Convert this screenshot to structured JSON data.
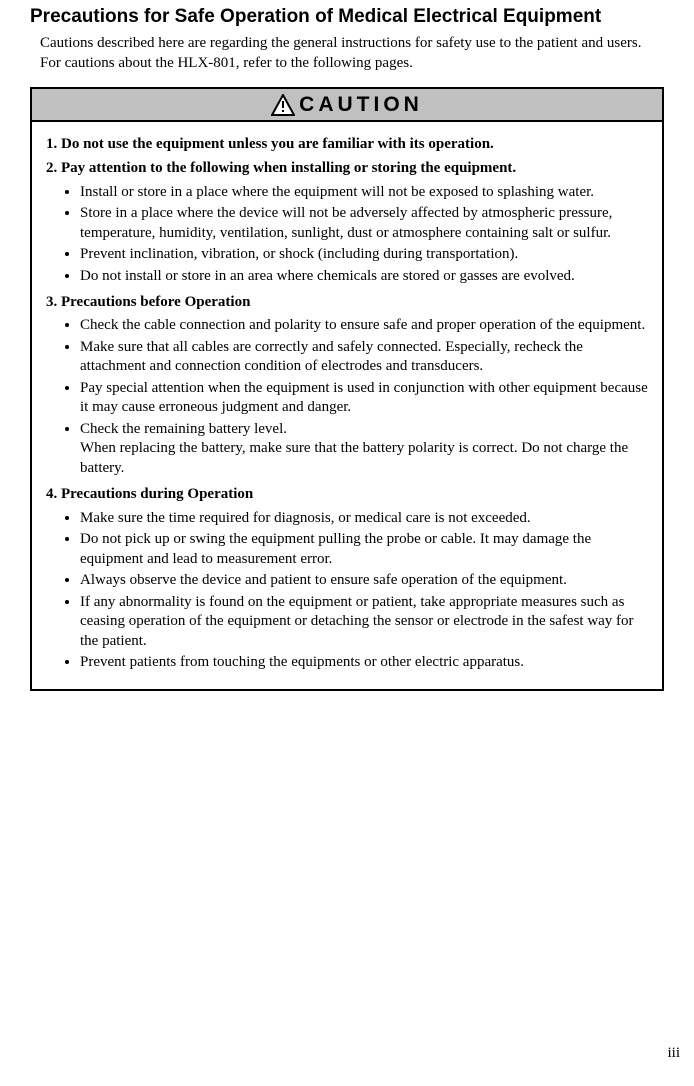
{
  "title": "Precautions for Safe Operation of Medical Electrical Equipment",
  "intro": "Cautions described here are regarding the general instructions for safety use to the patient and users. For cautions about the HLX-801, refer to the following pages.",
  "caution_label": "CAUTION",
  "caution_header_bg": "#c0c0c0",
  "border_color": "#000000",
  "text_color": "#000000",
  "page_number": "iii",
  "sections": [
    {
      "heading": "1. Do not use the equipment unless you are familiar with its operation.",
      "items": []
    },
    {
      "heading": "2. Pay attention to the following when installing or storing the equipment.",
      "items": [
        "Install or store in a place where the equipment will not be exposed to splashing water.",
        "Store in a place where the device will not be adversely affected by atmospheric pressure, temperature, humidity, ventilation, sunlight, dust or atmosphere containing salt or sulfur.",
        "Prevent inclination, vibration, or shock (including during transportation).",
        "Do not install or store in an area where chemicals are stored or gasses are evolved."
      ]
    },
    {
      "heading": "3. Precautions before Operation",
      "items": [
        "Check the cable connection and polarity to ensure safe and proper operation of the equipment.",
        "Make sure that all cables are correctly and safely connected. Especially, recheck the attachment and connection condition of electrodes and transducers.",
        "Pay special attention when the equipment is used in conjunction with other equipment because it may cause erroneous judgment and danger.",
        "Check the remaining battery level.\nWhen replacing the battery, make sure that the battery polarity is correct. Do not charge the battery."
      ]
    },
    {
      "heading": "4. Precautions during Operation",
      "items": [
        "Make sure the time required for diagnosis, or medical care is not exceeded.",
        "Do not pick up or swing the equipment pulling the probe or cable. It may damage the equipment and lead to measurement error.",
        "Always observe the device and patient to ensure safe operation of the equipment.",
        "If any abnormality is found on the equipment or patient, take appropriate measures such as ceasing operation of the equipment or detaching the sensor or electrode in the safest way for the patient.",
        "Prevent patients from touching the equipments or other electric apparatus."
      ]
    }
  ]
}
